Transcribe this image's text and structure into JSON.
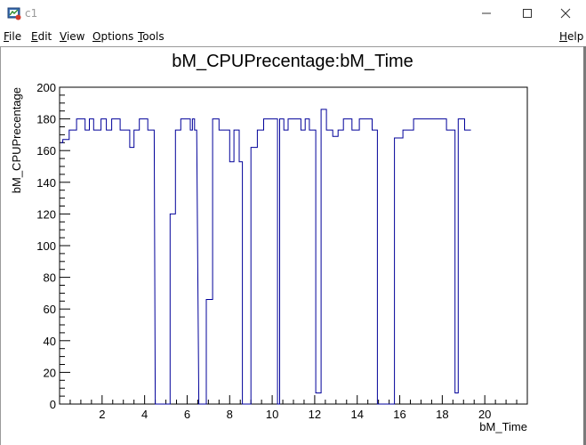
{
  "window": {
    "title": "c1",
    "icon": "root-canvas-icon"
  },
  "menu": {
    "items": [
      {
        "label": "File",
        "underline": "F",
        "rest": "ile"
      },
      {
        "label": "Edit",
        "underline": "E",
        "rest": "dit"
      },
      {
        "label": "View",
        "underline": "V",
        "rest": "iew"
      },
      {
        "label": "Options",
        "underline": "O",
        "rest": "ptions"
      },
      {
        "label": "Tools",
        "underline": "T",
        "rest": "ools"
      }
    ],
    "help": {
      "label": "Help",
      "underline": "H",
      "rest": "elp"
    }
  },
  "chart_data": {
    "type": "line",
    "title": "bM_CPUPrecentage:bM_Time",
    "xlabel": "bM_Time",
    "ylabel": "bM_CPUPrecentage",
    "xlim": [
      0,
      22
    ],
    "ylim": [
      0,
      200
    ],
    "xticks": [
      2,
      4,
      6,
      8,
      10,
      12,
      14,
      16,
      18,
      20
    ],
    "yticks": [
      0,
      20,
      40,
      60,
      80,
      100,
      120,
      140,
      160,
      180,
      200
    ],
    "grid": false,
    "line_color": "#000099",
    "series": [
      {
        "x": [
          0.05,
          0.15,
          0.15,
          0.45,
          0.45,
          0.8,
          0.8,
          1.2,
          1.2,
          1.4,
          1.4,
          1.6,
          1.6,
          1.95,
          1.95,
          2.2,
          2.2,
          2.45,
          2.45,
          2.85,
          2.85,
          3.3,
          3.3,
          3.5,
          3.5,
          3.75,
          3.75,
          4.15,
          4.15,
          4.45,
          4.5,
          5.2,
          5.2,
          5.45,
          5.45,
          5.7,
          5.7,
          6.15,
          6.15,
          6.25,
          6.25,
          6.35,
          6.35,
          6.45,
          6.55,
          6.9,
          6.9,
          7.2,
          7.2,
          7.5,
          7.5,
          8.0,
          8.0,
          8.2,
          8.2,
          8.45,
          8.45,
          8.6,
          8.6,
          9.0,
          9.0,
          9.3,
          9.3,
          9.6,
          9.6,
          10.25,
          10.25,
          10.35,
          10.35,
          10.55,
          10.55,
          10.75,
          10.75,
          11.35,
          11.35,
          11.55,
          11.55,
          11.75,
          11.75,
          12.05,
          12.05,
          12.3,
          12.3,
          12.55,
          12.55,
          12.85,
          12.85,
          13.1,
          13.1,
          13.35,
          13.35,
          13.75,
          13.75,
          14.1,
          14.1,
          14.35,
          14.35,
          14.7,
          14.7,
          14.95,
          14.95,
          15.75,
          15.75,
          16.15,
          16.15,
          16.65,
          16.65,
          18.2,
          18.2,
          18.6,
          18.6,
          18.75,
          18.75,
          19.05,
          19.05,
          19.35
        ],
        "y": [
          165,
          165,
          167,
          167,
          173,
          173,
          180,
          180,
          173,
          173,
          180,
          180,
          173,
          173,
          180,
          180,
          173,
          173,
          180,
          180,
          173,
          173,
          162,
          162,
          173,
          173,
          180,
          180,
          173,
          173,
          0,
          0,
          120,
          120,
          173,
          173,
          180,
          180,
          173,
          173,
          180,
          180,
          173,
          173,
          0,
          0,
          66,
          66,
          180,
          180,
          173,
          173,
          153,
          153,
          173,
          173,
          153,
          153,
          0,
          0,
          162,
          162,
          173,
          173,
          180,
          180,
          0,
          0,
          180,
          180,
          173,
          173,
          180,
          180,
          173,
          173,
          180,
          180,
          173,
          173,
          7,
          7,
          186,
          186,
          173,
          173,
          169,
          169,
          173,
          173,
          180,
          180,
          173,
          173,
          180,
          180,
          180,
          180,
          173,
          173,
          0,
          0,
          168,
          168,
          173,
          173,
          180,
          180,
          173,
          173,
          7,
          7,
          180,
          180,
          173,
          173
        ]
      }
    ]
  }
}
